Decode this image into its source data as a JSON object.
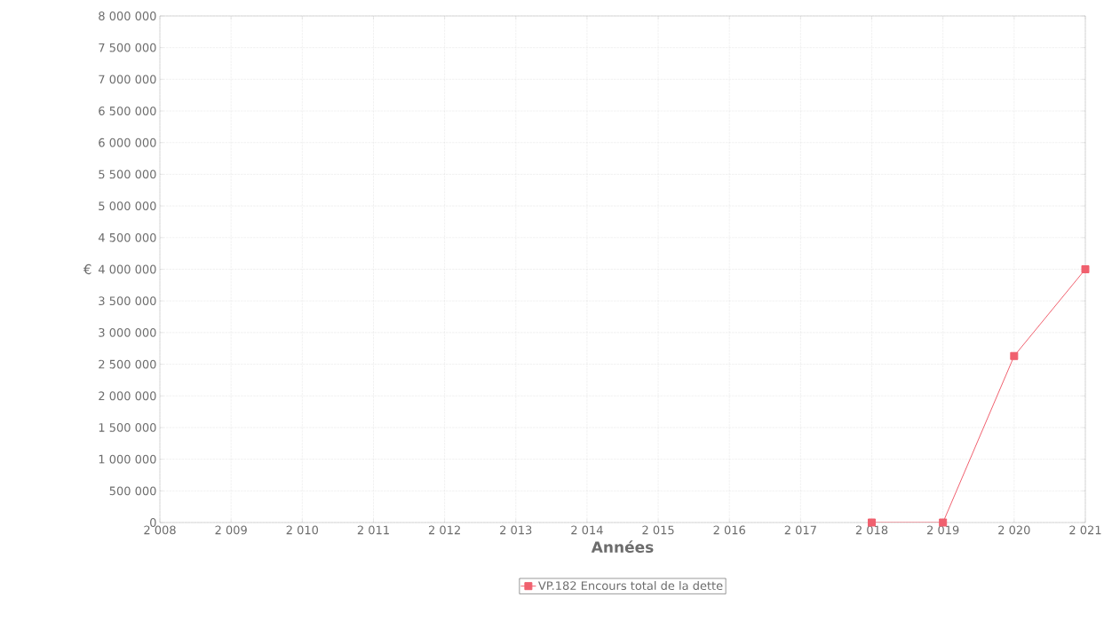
{
  "chart_data": {
    "type": "line",
    "xlabel": "Années",
    "ylabel": "€",
    "x": [
      2018,
      2019,
      2020,
      2021
    ],
    "series": [
      {
        "name": "VP.182 Encours total de la dette",
        "color": "#f0606e",
        "values": [
          0,
          0,
          2630000,
          4000000
        ]
      }
    ],
    "xlim": [
      2008,
      2021
    ],
    "xticks": [
      {
        "value": 2008,
        "label": "2 008"
      },
      {
        "value": 2009,
        "label": "2 009"
      },
      {
        "value": 2010,
        "label": "2 010"
      },
      {
        "value": 2011,
        "label": "2 011"
      },
      {
        "value": 2012,
        "label": "2 012"
      },
      {
        "value": 2013,
        "label": "2 013"
      },
      {
        "value": 2014,
        "label": "2 014"
      },
      {
        "value": 2015,
        "label": "2 015"
      },
      {
        "value": 2016,
        "label": "2 016"
      },
      {
        "value": 2017,
        "label": "2 017"
      },
      {
        "value": 2018,
        "label": "2 018"
      },
      {
        "value": 2019,
        "label": "2 019"
      },
      {
        "value": 2020,
        "label": "2 020"
      },
      {
        "value": 2021,
        "label": "2 021"
      }
    ],
    "ylim": [
      0,
      8000000
    ],
    "yticks": [
      0,
      {
        "value": 500000,
        "label": "500 000"
      },
      {
        "value": 1000000,
        "label": "1 000 000"
      },
      {
        "value": 1500000,
        "label": "1 500 000"
      },
      {
        "value": 2000000,
        "label": "2 000 000"
      },
      {
        "value": 2500000,
        "label": "2 500 000"
      },
      {
        "value": 3000000,
        "label": "3 000 000"
      },
      {
        "value": 3500000,
        "label": "3 500 000"
      },
      {
        "value": 4000000,
        "label": "4 000 000"
      },
      {
        "value": 4500000,
        "label": "4 500 000"
      },
      {
        "value": 5000000,
        "label": "5 000 000"
      },
      {
        "value": 5500000,
        "label": "5 500 000"
      },
      {
        "value": 6000000,
        "label": "6 000 000"
      },
      {
        "value": 6500000,
        "label": "6 500 000"
      },
      {
        "value": 7000000,
        "label": "7 000 000"
      },
      {
        "value": 7500000,
        "label": "7 500 000"
      },
      {
        "value": 8000000,
        "label": "8 000 000"
      }
    ],
    "grid": true,
    "legend": "bottom",
    "marker": "square",
    "line_style": "solid"
  }
}
